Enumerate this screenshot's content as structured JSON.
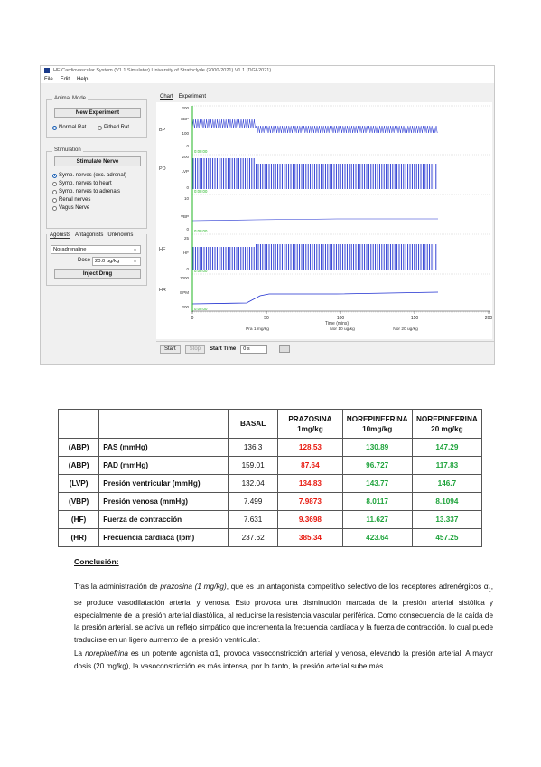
{
  "app": {
    "title": "HE Cardiovascular System (V1.1 Simulator) University of Strathclyde (2000-2021) V1.1 (DGI-2021)",
    "menu": [
      "File",
      "Edit",
      "Help"
    ],
    "animal_mode": {
      "legend": "Animal Mode",
      "new_experiment": "New Experiment",
      "normal_rat": "Normal Rat",
      "pithed_rat": "Pithed Rat"
    },
    "stimulation": {
      "legend": "Stimulation",
      "stimulate_nerve": "Stimulate Nerve",
      "options": [
        "Symp. nerves (exc. adrenal)",
        "Symp. nerves to heart",
        "Symp. nerves to adrenals",
        "Renal nerves",
        "Vagus Nerve"
      ]
    },
    "drugs": {
      "tabs": [
        "Agonists",
        "Antagonists",
        "Unknowns"
      ],
      "drug_name": "Noradrenaline",
      "dose_label": "Dose",
      "dose_value": "20.0 ug/kg",
      "inject": "Inject Drug"
    },
    "chart_tabs": [
      "Chart",
      "Experiment"
    ],
    "trace_labels": [
      "BP",
      "PD",
      "HF",
      "HR"
    ],
    "y_labels": {
      "abp": [
        "200",
        "ABP",
        "100",
        "0"
      ],
      "lvp": [
        "200",
        "LVP",
        "0"
      ],
      "vbp": [
        "10",
        "VBP",
        "0"
      ],
      "hf": [
        "25",
        "HF",
        "0"
      ],
      "hr": [
        "1000",
        "BPM",
        "200"
      ]
    },
    "x_ticks": [
      "0",
      "50",
      "100",
      "150",
      "200"
    ],
    "x_title": "Time (mins)",
    "event_labels": [
      "Pra 1 mg/kg",
      "Nor 10 ug/kg",
      "Nor 20 ug/kg"
    ],
    "marker_label": "0:00:00",
    "bottom_bar": {
      "start": "Start",
      "stop": "Stop",
      "start_time_label": "Start Time",
      "start_time_value": "0 s"
    },
    "colors": {
      "trace": "#1f2fd0",
      "marker": "#22b522"
    }
  },
  "table": {
    "headers": [
      "BASAL",
      "PRAZOSINA\n1mg/kg",
      "NOREPINEFRINA\n10mg/kg",
      "NOREPINEFRINA\n20 mg/kg"
    ],
    "rows": [
      {
        "abbr": "(ABP)",
        "name": "PAS (mmHg)",
        "basal": "136.3",
        "prazosina": "128.53",
        "nor10": "130.89",
        "nor20": "147.29"
      },
      {
        "abbr": "(ABP)",
        "name": "PAD (mmHg)",
        "basal": "159.01",
        "prazosina": "87.64",
        "nor10": "96.727",
        "nor20": "117.83"
      },
      {
        "abbr": "(LVP)",
        "name": "Presión ventricular (mmHg)",
        "basal": "132.04",
        "prazosina": "134.83",
        "nor10": "143.77",
        "nor20": "146.7"
      },
      {
        "abbr": "(VBP)",
        "name": "Presión venosa (mmHg)",
        "basal": "7.499",
        "prazosina": "7.9873",
        "nor10": "8.0117",
        "nor20": "8.1094"
      },
      {
        "abbr": "(HF)",
        "name": "Fuerza de contracción",
        "basal": "7.631",
        "prazosina": "9.3698",
        "nor10": "11.627",
        "nor20": "13.337"
      },
      {
        "abbr": "(HR)",
        "name": "Frecuencia cardiaca (lpm)",
        "basal": "237.62",
        "prazosina": "385.34",
        "nor10": "423.64",
        "nor20": "457.25"
      }
    ],
    "colors": {
      "red": "#e8190f",
      "green": "#1ea33b"
    }
  },
  "conclusion": {
    "title": "Conclusión:",
    "p1": {
      "a": "Tras la administración de ",
      "drug": "prazosina (1 mg/kg)",
      "b": ", que es un antagonista competitivo selectivo de los receptores adrenérgicos α",
      "sub": "1",
      "c": ", se produce vasodilatación arterial y venosa. Esto provoca una disminución marcada de la presión arterial sistólica y especialmente de la presión arterial diastólica, al reducirse la resistencia vascular periférica. Como consecuencia de la caída de la presión arterial, se activa un reflejo simpático que incrementa la frecuencia cardíaca y la fuerza de contracción, lo cual puede traducirse en un ligero aumento de la presión ventricular."
    },
    "p2": {
      "a": "La ",
      "drug": "norepinefrina",
      "b": " es un potente agonista α1, provoca vasoconstricción arterial y venosa, elevando la presión arterial. A mayor dosis (20 mg/kg), la vasoconstricción es más intensa, por lo tanto, la presión arterial sube más."
    }
  }
}
